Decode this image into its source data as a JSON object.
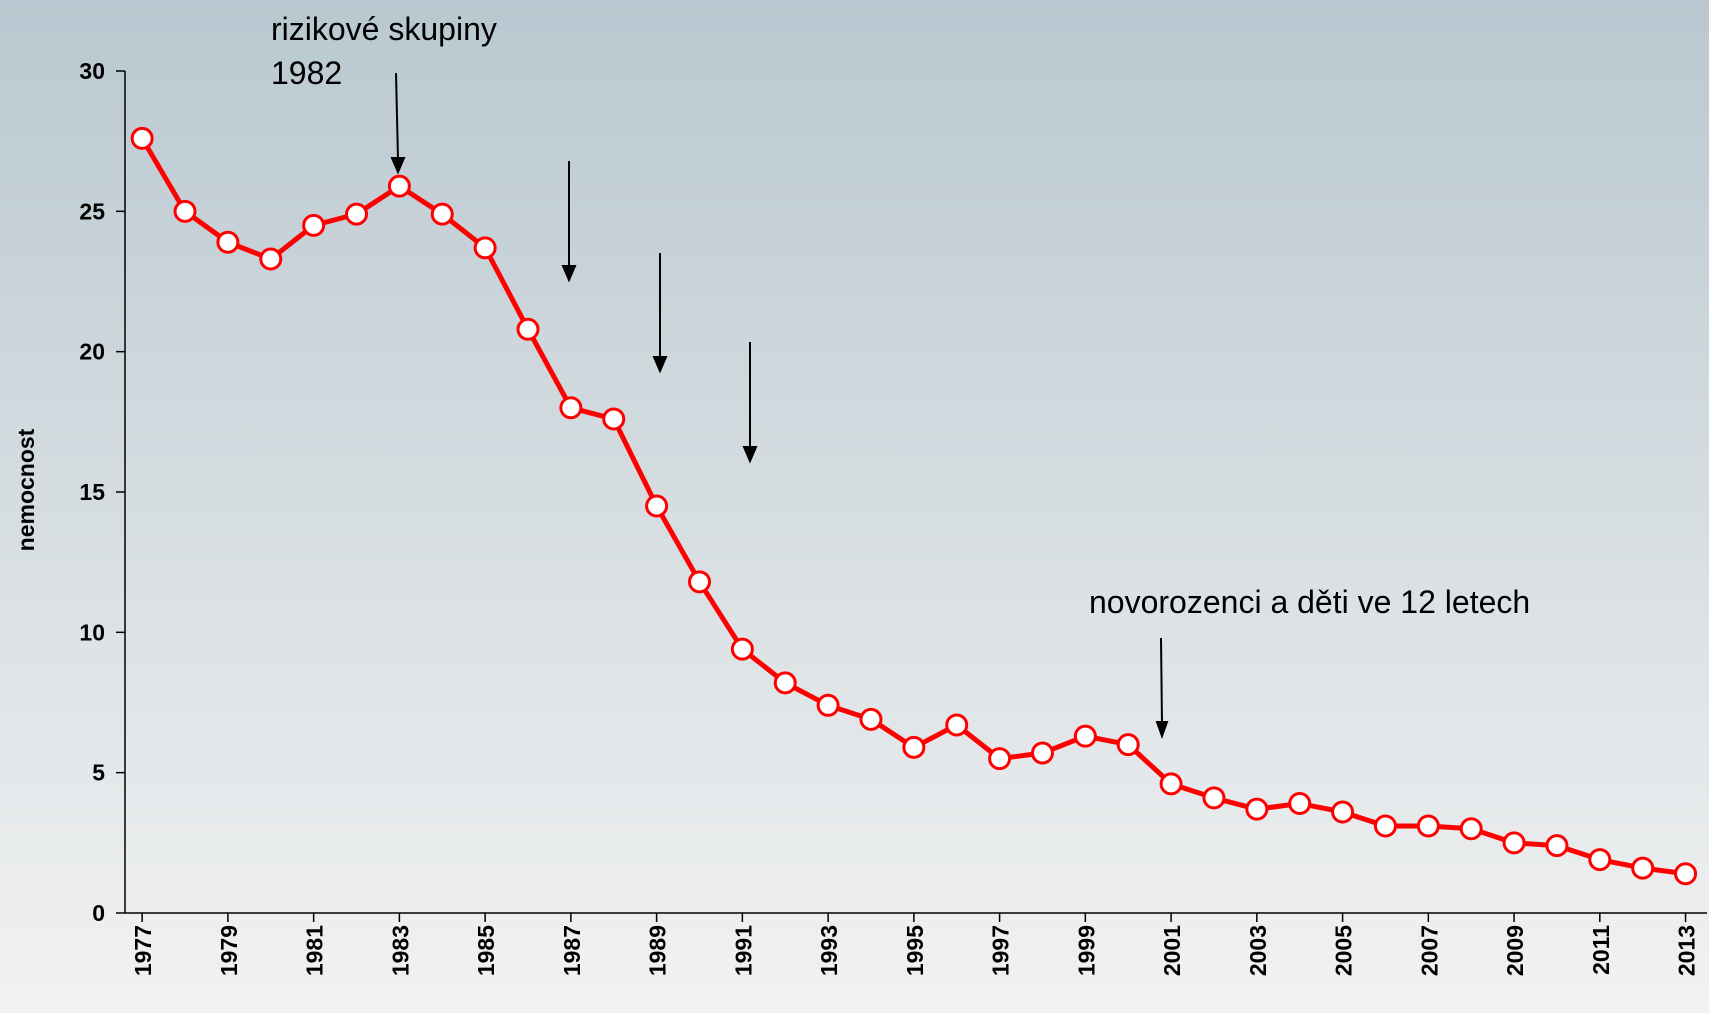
{
  "chart_data": {
    "type": "line",
    "y_label": "nemocnost",
    "annotations": [
      "rizikové skupiny",
      "1982",
      "novorozenci a děti ve 12 letech"
    ],
    "x": [
      1977,
      1978,
      1979,
      1980,
      1981,
      1982,
      1983,
      1984,
      1985,
      1986,
      1987,
      1988,
      1989,
      1990,
      1991,
      1992,
      1993,
      1994,
      1995,
      1996,
      1997,
      1998,
      1999,
      2000,
      2001,
      2002,
      2003,
      2004,
      2005,
      2006,
      2007,
      2008,
      2009,
      2010,
      2011,
      2012,
      2013
    ],
    "series": [
      {
        "name": "nemocnost",
        "color": "#ff0000",
        "values": [
          27.6,
          25.0,
          23.9,
          23.3,
          24.5,
          24.9,
          25.9,
          24.9,
          23.7,
          20.8,
          18.0,
          17.6,
          14.5,
          11.8,
          9.4,
          8.2,
          7.4,
          6.9,
          5.9,
          6.7,
          5.5,
          5.7,
          6.3,
          6.0,
          4.6,
          4.1,
          3.7,
          3.9,
          3.6,
          3.1,
          3.1,
          3.0,
          2.5,
          2.4,
          1.9,
          1.6,
          1.4
        ]
      }
    ],
    "xlim": [
      1976.6,
      2013.5
    ],
    "xticks": [
      1977,
      1979,
      1981,
      1983,
      1985,
      1987,
      1989,
      1991,
      1993,
      1995,
      1997,
      1999,
      2001,
      2003,
      2005,
      2007,
      2009,
      2011,
      2013
    ],
    "ylim": [
      0,
      30
    ],
    "yticks": [
      0,
      5,
      10,
      15,
      20,
      25,
      30
    ]
  }
}
